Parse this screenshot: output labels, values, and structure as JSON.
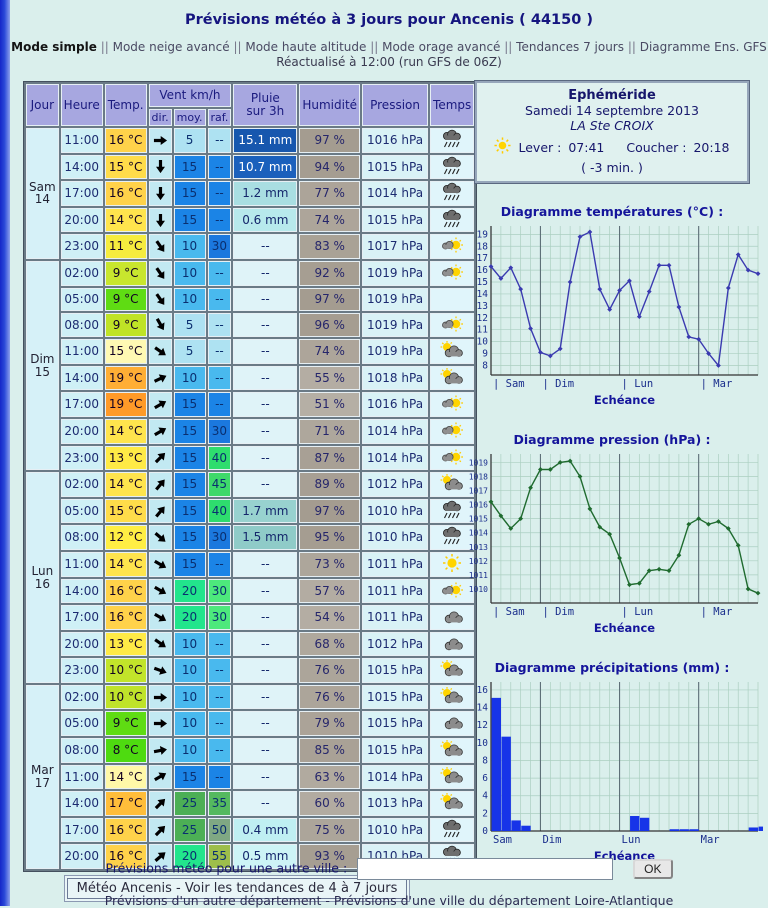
{
  "header": {
    "title": "Prévisions météo à 3 jours pour Ancenis ( 44150 )",
    "nav": [
      "Mode simple",
      "Mode neige avancé",
      "Mode haute altitude",
      "Mode orage avancé",
      "Tendances 7 jours",
      "Diagramme Ens. GFS"
    ],
    "separator": "||",
    "refresh": "Réactualisé à 12:00 (run GFS de 06Z)"
  },
  "table": {
    "col_headers": {
      "jour": "Jour",
      "heure": "Heure",
      "temp": "Temp.",
      "vent": "Vent km/h",
      "dir": "dir.",
      "moy": "moy.",
      "raf": "raf.",
      "pluie_l1": "Pluie",
      "pluie_l2": "sur 3h",
      "humidite": "Humidité",
      "pression": "Pression",
      "temps": "Temps"
    },
    "days": [
      {
        "name": "Sam",
        "num": "14",
        "rows": 5
      },
      {
        "name": "Dim",
        "num": "15",
        "rows": 8
      },
      {
        "name": "Lun",
        "num": "16",
        "rows": 8
      },
      {
        "name": "Mar",
        "num": "17",
        "rows": 7
      }
    ],
    "rows": [
      {
        "heure": "11:00",
        "temp": "16 °C",
        "temp_bg": "#FFD24A",
        "dir_deg": 0,
        "moy": "5",
        "moy_bg": "#AEE2F2",
        "raf": "--",
        "raf_bg": "#AEE2F2",
        "pluie": "15.1 mm",
        "pluie_bg": "#1757AE",
        "pluie_fg": "#FFFFFF",
        "humidite": "97 %",
        "pression": "1016 hPa",
        "icon": "rain"
      },
      {
        "heure": "14:00",
        "temp": "15 °C",
        "temp_bg": "#FFDC4A",
        "dir_deg": 90,
        "moy": "15",
        "moy_bg": "#1B84E6",
        "raf": "--",
        "raf_bg": "#1B84E6",
        "pluie": "10.7 mm",
        "pluie_bg": "#1A60BC",
        "pluie_fg": "#FFFFFF",
        "humidite": "94 %",
        "pression": "1015 hPa",
        "icon": "rain"
      },
      {
        "heure": "17:00",
        "temp": "16 °C",
        "temp_bg": "#FFD24A",
        "dir_deg": 90,
        "moy": "15",
        "moy_bg": "#1B84E6",
        "raf": "--",
        "raf_bg": "#1B84E6",
        "pluie": "1.2 mm",
        "pluie_bg": "#A9DEE2",
        "pluie_fg": "#14266B",
        "humidite": "77 %",
        "pression": "1014 hPa",
        "icon": "rain"
      },
      {
        "heure": "20:00",
        "temp": "14 °C",
        "temp_bg": "#FFE44D",
        "dir_deg": 90,
        "moy": "15",
        "moy_bg": "#1B84E6",
        "raf": "--",
        "raf_bg": "#1B84E6",
        "pluie": "0.6 mm",
        "pluie_bg": "#B7E9EC",
        "pluie_fg": "#14266B",
        "humidite": "74 %",
        "pression": "1015 hPa",
        "icon": "rain"
      },
      {
        "heure": "23:00",
        "temp": "11 °C",
        "temp_bg": "#F6EC3E",
        "dir_deg": 55,
        "moy": "10",
        "moy_bg": "#49B9EE",
        "raf": "30",
        "raf_bg": "#1B78DE",
        "pluie": "--",
        "pluie_bg": "#DFF3F8",
        "pluie_fg": "#14266B",
        "humidite": "83 %",
        "pression": "1017 hPa",
        "icon": "suncloud"
      },
      {
        "heure": "02:00",
        "temp": "9 °C",
        "temp_bg": "#C8E62E",
        "dir_deg": 55,
        "moy": "10",
        "moy_bg": "#49B9EE",
        "raf": "--",
        "raf_bg": "#49B9EE",
        "pluie": "--",
        "pluie_bg": "#DFF3F8",
        "pluie_fg": "#14266B",
        "humidite": "92 %",
        "pression": "1019 hPa",
        "icon": "suncloud"
      },
      {
        "heure": "05:00",
        "temp": "9 °C",
        "temp_bg": "#5FDC13",
        "dir_deg": 55,
        "moy": "10",
        "moy_bg": "#49B9EE",
        "raf": "--",
        "raf_bg": "#49B9EE",
        "pluie": "--",
        "pluie_bg": "#DFF3F8",
        "pluie_fg": "#14266B",
        "humidite": "97 %",
        "pression": "1019 hPa",
        "icon": "none"
      },
      {
        "heure": "08:00",
        "temp": "9 °C",
        "temp_bg": "#BFE326",
        "dir_deg": 60,
        "moy": "5",
        "moy_bg": "#AEE2F2",
        "raf": "--",
        "raf_bg": "#AEE2F2",
        "pluie": "--",
        "pluie_bg": "#DFF3F8",
        "pluie_fg": "#14266B",
        "humidite": "96 %",
        "pression": "1019 hPa",
        "icon": "suncloud"
      },
      {
        "heure": "11:00",
        "temp": "15 °C",
        "temp_bg": "#FFF9B3",
        "dir_deg": 35,
        "moy": "5",
        "moy_bg": "#AEE2F2",
        "raf": "--",
        "raf_bg": "#AEE2F2",
        "pluie": "--",
        "pluie_bg": "#DFF3F8",
        "pluie_fg": "#14266B",
        "humidite": "74 %",
        "pression": "1019 hPa",
        "icon": "cloudsun"
      },
      {
        "heure": "14:00",
        "temp": "19 °C",
        "temp_bg": "#FFAE35",
        "dir_deg": -25,
        "moy": "10",
        "moy_bg": "#49B9EE",
        "raf": "--",
        "raf_bg": "#49B9EE",
        "pluie": "--",
        "pluie_bg": "#DFF3F8",
        "pluie_fg": "#14266B",
        "humidite": "55 %",
        "pression": "1018 hPa",
        "icon": "cloudsun"
      },
      {
        "heure": "17:00",
        "temp": "19 °C",
        "temp_bg": "#FF9A28",
        "dir_deg": -30,
        "moy": "15",
        "moy_bg": "#1B84E6",
        "raf": "--",
        "raf_bg": "#1B84E6",
        "pluie": "--",
        "pluie_bg": "#DFF3F8",
        "pluie_fg": "#14266B",
        "humidite": "51 %",
        "pression": "1016 hPa",
        "icon": "suncloud"
      },
      {
        "heure": "20:00",
        "temp": "14 °C",
        "temp_bg": "#FFE44D",
        "dir_deg": -30,
        "moy": "15",
        "moy_bg": "#1B84E6",
        "raf": "30",
        "raf_bg": "#1B78DE",
        "pluie": "--",
        "pluie_bg": "#DFF3F8",
        "pluie_fg": "#14266B",
        "humidite": "71 %",
        "pression": "1014 hPa",
        "icon": "suncloud"
      },
      {
        "heure": "23:00",
        "temp": "13 °C",
        "temp_bg": "#FFEA46",
        "dir_deg": -45,
        "moy": "15",
        "moy_bg": "#1B84E6",
        "raf": "40",
        "raf_bg": "#2EDD6E",
        "pluie": "--",
        "pluie_bg": "#DFF3F8",
        "pluie_fg": "#14266B",
        "humidite": "87 %",
        "pression": "1014 hPa",
        "icon": "suncloud"
      },
      {
        "heure": "02:00",
        "temp": "14 °C",
        "temp_bg": "#FFE44D",
        "dir_deg": -50,
        "moy": "15",
        "moy_bg": "#1B84E6",
        "raf": "45",
        "raf_bg": "#3ED96A",
        "pluie": "--",
        "pluie_bg": "#DFF3F8",
        "pluie_fg": "#14266B",
        "humidite": "89 %",
        "pression": "1012 hPa",
        "icon": "cloudsun"
      },
      {
        "heure": "05:00",
        "temp": "15 °C",
        "temp_bg": "#FFDC4A",
        "dir_deg": -50,
        "moy": "15",
        "moy_bg": "#1B84E6",
        "raf": "40",
        "raf_bg": "#2EDD6E",
        "pluie": "1.7 mm",
        "pluie_bg": "#98D2CF",
        "pluie_fg": "#14266B",
        "humidite": "97 %",
        "pression": "1010 hPa",
        "icon": "rain"
      },
      {
        "heure": "08:00",
        "temp": "12 °C",
        "temp_bg": "#FFEE44",
        "dir_deg": 40,
        "moy": "15",
        "moy_bg": "#1B84E6",
        "raf": "30",
        "raf_bg": "#1B78DE",
        "pluie": "1.5 mm",
        "pluie_bg": "#8FCBC8",
        "pluie_fg": "#14266B",
        "humidite": "95 %",
        "pression": "1010 hPa",
        "icon": "rain"
      },
      {
        "heure": "11:00",
        "temp": "14 °C",
        "temp_bg": "#FFE44D",
        "dir_deg": 30,
        "moy": "15",
        "moy_bg": "#1B84E6",
        "raf": "--",
        "raf_bg": "#1B84E6",
        "pluie": "--",
        "pluie_bg": "#DFF3F8",
        "pluie_fg": "#14266B",
        "humidite": "73 %",
        "pression": "1011 hPa",
        "icon": "sun"
      },
      {
        "heure": "14:00",
        "temp": "16 °C",
        "temp_bg": "#FFD24A",
        "dir_deg": 30,
        "moy": "20",
        "moy_bg": "#22E58C",
        "raf": "30",
        "raf_bg": "#4DE97C",
        "pluie": "--",
        "pluie_bg": "#DFF3F8",
        "pluie_fg": "#14266B",
        "humidite": "57 %",
        "pression": "1011 hPa",
        "icon": "suncloud"
      },
      {
        "heure": "17:00",
        "temp": "16 °C",
        "temp_bg": "#FFD24A",
        "dir_deg": 30,
        "moy": "20",
        "moy_bg": "#22E58C",
        "raf": "30",
        "raf_bg": "#4DE97C",
        "pluie": "--",
        "pluie_bg": "#DFF3F8",
        "pluie_fg": "#14266B",
        "humidite": "54 %",
        "pression": "1011 hPa",
        "icon": "cloud"
      },
      {
        "heure": "20:00",
        "temp": "13 °C",
        "temp_bg": "#FFEA46",
        "dir_deg": 35,
        "moy": "10",
        "moy_bg": "#49B9EE",
        "raf": "--",
        "raf_bg": "#49B9EE",
        "pluie": "--",
        "pluie_bg": "#DFF3F8",
        "pluie_fg": "#14266B",
        "humidite": "68 %",
        "pression": "1012 hPa",
        "icon": "cloud"
      },
      {
        "heure": "23:00",
        "temp": "10 °C",
        "temp_bg": "#C2E42A",
        "dir_deg": 20,
        "moy": "10",
        "moy_bg": "#49B9EE",
        "raf": "--",
        "raf_bg": "#49B9EE",
        "pluie": "--",
        "pluie_bg": "#DFF3F8",
        "pluie_fg": "#14266B",
        "humidite": "76 %",
        "pression": "1015 hPa",
        "icon": "cloudsun"
      },
      {
        "heure": "02:00",
        "temp": "10 °C",
        "temp_bg": "#BFE32A",
        "dir_deg": 0,
        "moy": "10",
        "moy_bg": "#49B9EE",
        "raf": "--",
        "raf_bg": "#49B9EE",
        "pluie": "--",
        "pluie_bg": "#DFF3F8",
        "pluie_fg": "#14266B",
        "humidite": "76 %",
        "pression": "1015 hPa",
        "icon": "cloudsun"
      },
      {
        "heure": "05:00",
        "temp": "9 °C",
        "temp_bg": "#5FDC13",
        "dir_deg": 0,
        "moy": "10",
        "moy_bg": "#49B9EE",
        "raf": "--",
        "raf_bg": "#49B9EE",
        "pluie": "--",
        "pluie_bg": "#DFF3F8",
        "pluie_fg": "#14266B",
        "humidite": "79 %",
        "pression": "1015 hPa",
        "icon": "cloud"
      },
      {
        "heure": "08:00",
        "temp": "8 °C",
        "temp_bg": "#4EDB10",
        "dir_deg": -10,
        "moy": "10",
        "moy_bg": "#49B9EE",
        "raf": "--",
        "raf_bg": "#49B9EE",
        "pluie": "--",
        "pluie_bg": "#DFF3F8",
        "pluie_fg": "#14266B",
        "humidite": "85 %",
        "pression": "1015 hPa",
        "icon": "cloudsun"
      },
      {
        "heure": "11:00",
        "temp": "14 °C",
        "temp_bg": "#FFF8A8",
        "dir_deg": -30,
        "moy": "15",
        "moy_bg": "#1B84E6",
        "raf": "--",
        "raf_bg": "#1B84E6",
        "pluie": "--",
        "pluie_bg": "#DFF3F8",
        "pluie_fg": "#14266B",
        "humidite": "63 %",
        "pression": "1014 hPa",
        "icon": "cloudsun"
      },
      {
        "heure": "14:00",
        "temp": "17 °C",
        "temp_bg": "#FFBD3A",
        "dir_deg": -45,
        "moy": "25",
        "moy_bg": "#4CAF55",
        "raf": "35",
        "raf_bg": "#55B95F",
        "pluie": "--",
        "pluie_bg": "#DFF3F8",
        "pluie_fg": "#14266B",
        "humidite": "60 %",
        "pression": "1013 hPa",
        "icon": "cloudsun"
      },
      {
        "heure": "17:00",
        "temp": "16 °C",
        "temp_bg": "#FFD24A",
        "dir_deg": -45,
        "moy": "25",
        "moy_bg": "#4CAF55",
        "raf": "50",
        "raf_bg": "#7FA883",
        "pluie": "0.4 mm",
        "pluie_bg": "#BFEFF2",
        "pluie_fg": "#14266B",
        "humidite": "75 %",
        "pression": "1010 hPa",
        "icon": "rain"
      },
      {
        "heure": "20:00",
        "temp": "16 °C",
        "temp_bg": "#FFD24A",
        "dir_deg": -40,
        "moy": "20",
        "moy_bg": "#22E58C",
        "raf": "55",
        "raf_bg": "#9DBE4B",
        "pluie": "0.5 mm",
        "pluie_bg": "#CDF4F6",
        "pluie_fg": "#14266B",
        "humidite": "93 %",
        "pression": "1010 hPa",
        "icon": "rain"
      }
    ]
  },
  "tendances_link": "Météo Ancenis - Voir les tendances de 4 à 7 jours",
  "ephemeride": {
    "title": "Ephéméride",
    "date": "Samedi 14 septembre 2013",
    "saint": "LA Ste CROIX",
    "lever_label": "Lever :",
    "lever": "07:41",
    "coucher_label": "Coucher :",
    "coucher": "20:18",
    "delta": "( -3 min. )"
  },
  "chart_data": [
    {
      "type": "line",
      "title": "Diagramme températures (°C) :",
      "xlabel": "Echéance",
      "color": "#3A3AB0",
      "ymin": 7.2,
      "ymax": 19.7,
      "yticks": [
        8,
        9,
        10,
        11,
        12,
        13,
        14,
        15,
        16,
        17,
        18,
        19
      ],
      "day_ticks": [
        {
          "i": 0,
          "label": "Sam"
        },
        {
          "i": 5,
          "label": "Dim"
        },
        {
          "i": 13,
          "label": "Lun"
        },
        {
          "i": 21,
          "label": "Mar"
        }
      ],
      "values": [
        16.3,
        15.3,
        16.2,
        14.4,
        11.1,
        9.1,
        8.8,
        9.4,
        15.0,
        18.8,
        19.2,
        14.4,
        12.7,
        14.3,
        15.1,
        12.1,
        14.2,
        16.4,
        16.4,
        12.9,
        10.4,
        10.2,
        9.0,
        8.0,
        14.5,
        17.3,
        16.0,
        15.7
      ]
    },
    {
      "type": "line",
      "title": "Diagramme pression (hPa) :",
      "xlabel": "Echéance",
      "color": "#1F6B2F",
      "ymin": 1009.0,
      "ymax": 1019.6,
      "yticks": [
        1010,
        1011,
        1012,
        1013,
        1014,
        1015,
        1016,
        1017,
        1018,
        1019
      ],
      "day_ticks": [
        {
          "i": 0,
          "label": "Sam"
        },
        {
          "i": 5,
          "label": "Dim"
        },
        {
          "i": 13,
          "label": "Lun"
        },
        {
          "i": 21,
          "label": "Mar"
        }
      ],
      "values": [
        1016.2,
        1015.2,
        1014.3,
        1015.0,
        1017.2,
        1018.5,
        1018.5,
        1019.0,
        1019.1,
        1018.0,
        1015.7,
        1014.4,
        1013.9,
        1012.2,
        1010.3,
        1010.4,
        1011.3,
        1011.4,
        1011.3,
        1012.4,
        1014.6,
        1015.0,
        1014.6,
        1014.8,
        1014.3,
        1013.1,
        1010.0,
        1009.7
      ]
    },
    {
      "type": "bar",
      "title": "Diagramme précipitations (mm) :",
      "xlabel": "Echéance",
      "color": "#1734E8",
      "ymin": 0,
      "ymax": 16.9,
      "yticks": [
        0,
        2,
        4,
        6,
        8,
        10,
        12,
        14,
        16
      ],
      "day_ticks": [
        {
          "i": 0,
          "label": "Sam"
        },
        {
          "i": 5,
          "label": "Dim"
        },
        {
          "i": 13,
          "label": "Lun"
        },
        {
          "i": 21,
          "label": "Mar"
        }
      ],
      "values": [
        15.1,
        10.7,
        1.2,
        0.6,
        0,
        0,
        0,
        0,
        0,
        0,
        0,
        0,
        0,
        0,
        1.7,
        1.5,
        0,
        0,
        0.2,
        0.2,
        0.2,
        0,
        0,
        0,
        0,
        0,
        0.4,
        0.5
      ]
    }
  ],
  "form": {
    "label": "Prévisions météo pour une autre ville :",
    "input_value": "",
    "ok": "OK"
  },
  "footer": {
    "links": [
      "Prévisions d'un autre département",
      "Prévisions d'une ville du département Loire-Atlantique"
    ],
    "separator": " - "
  }
}
